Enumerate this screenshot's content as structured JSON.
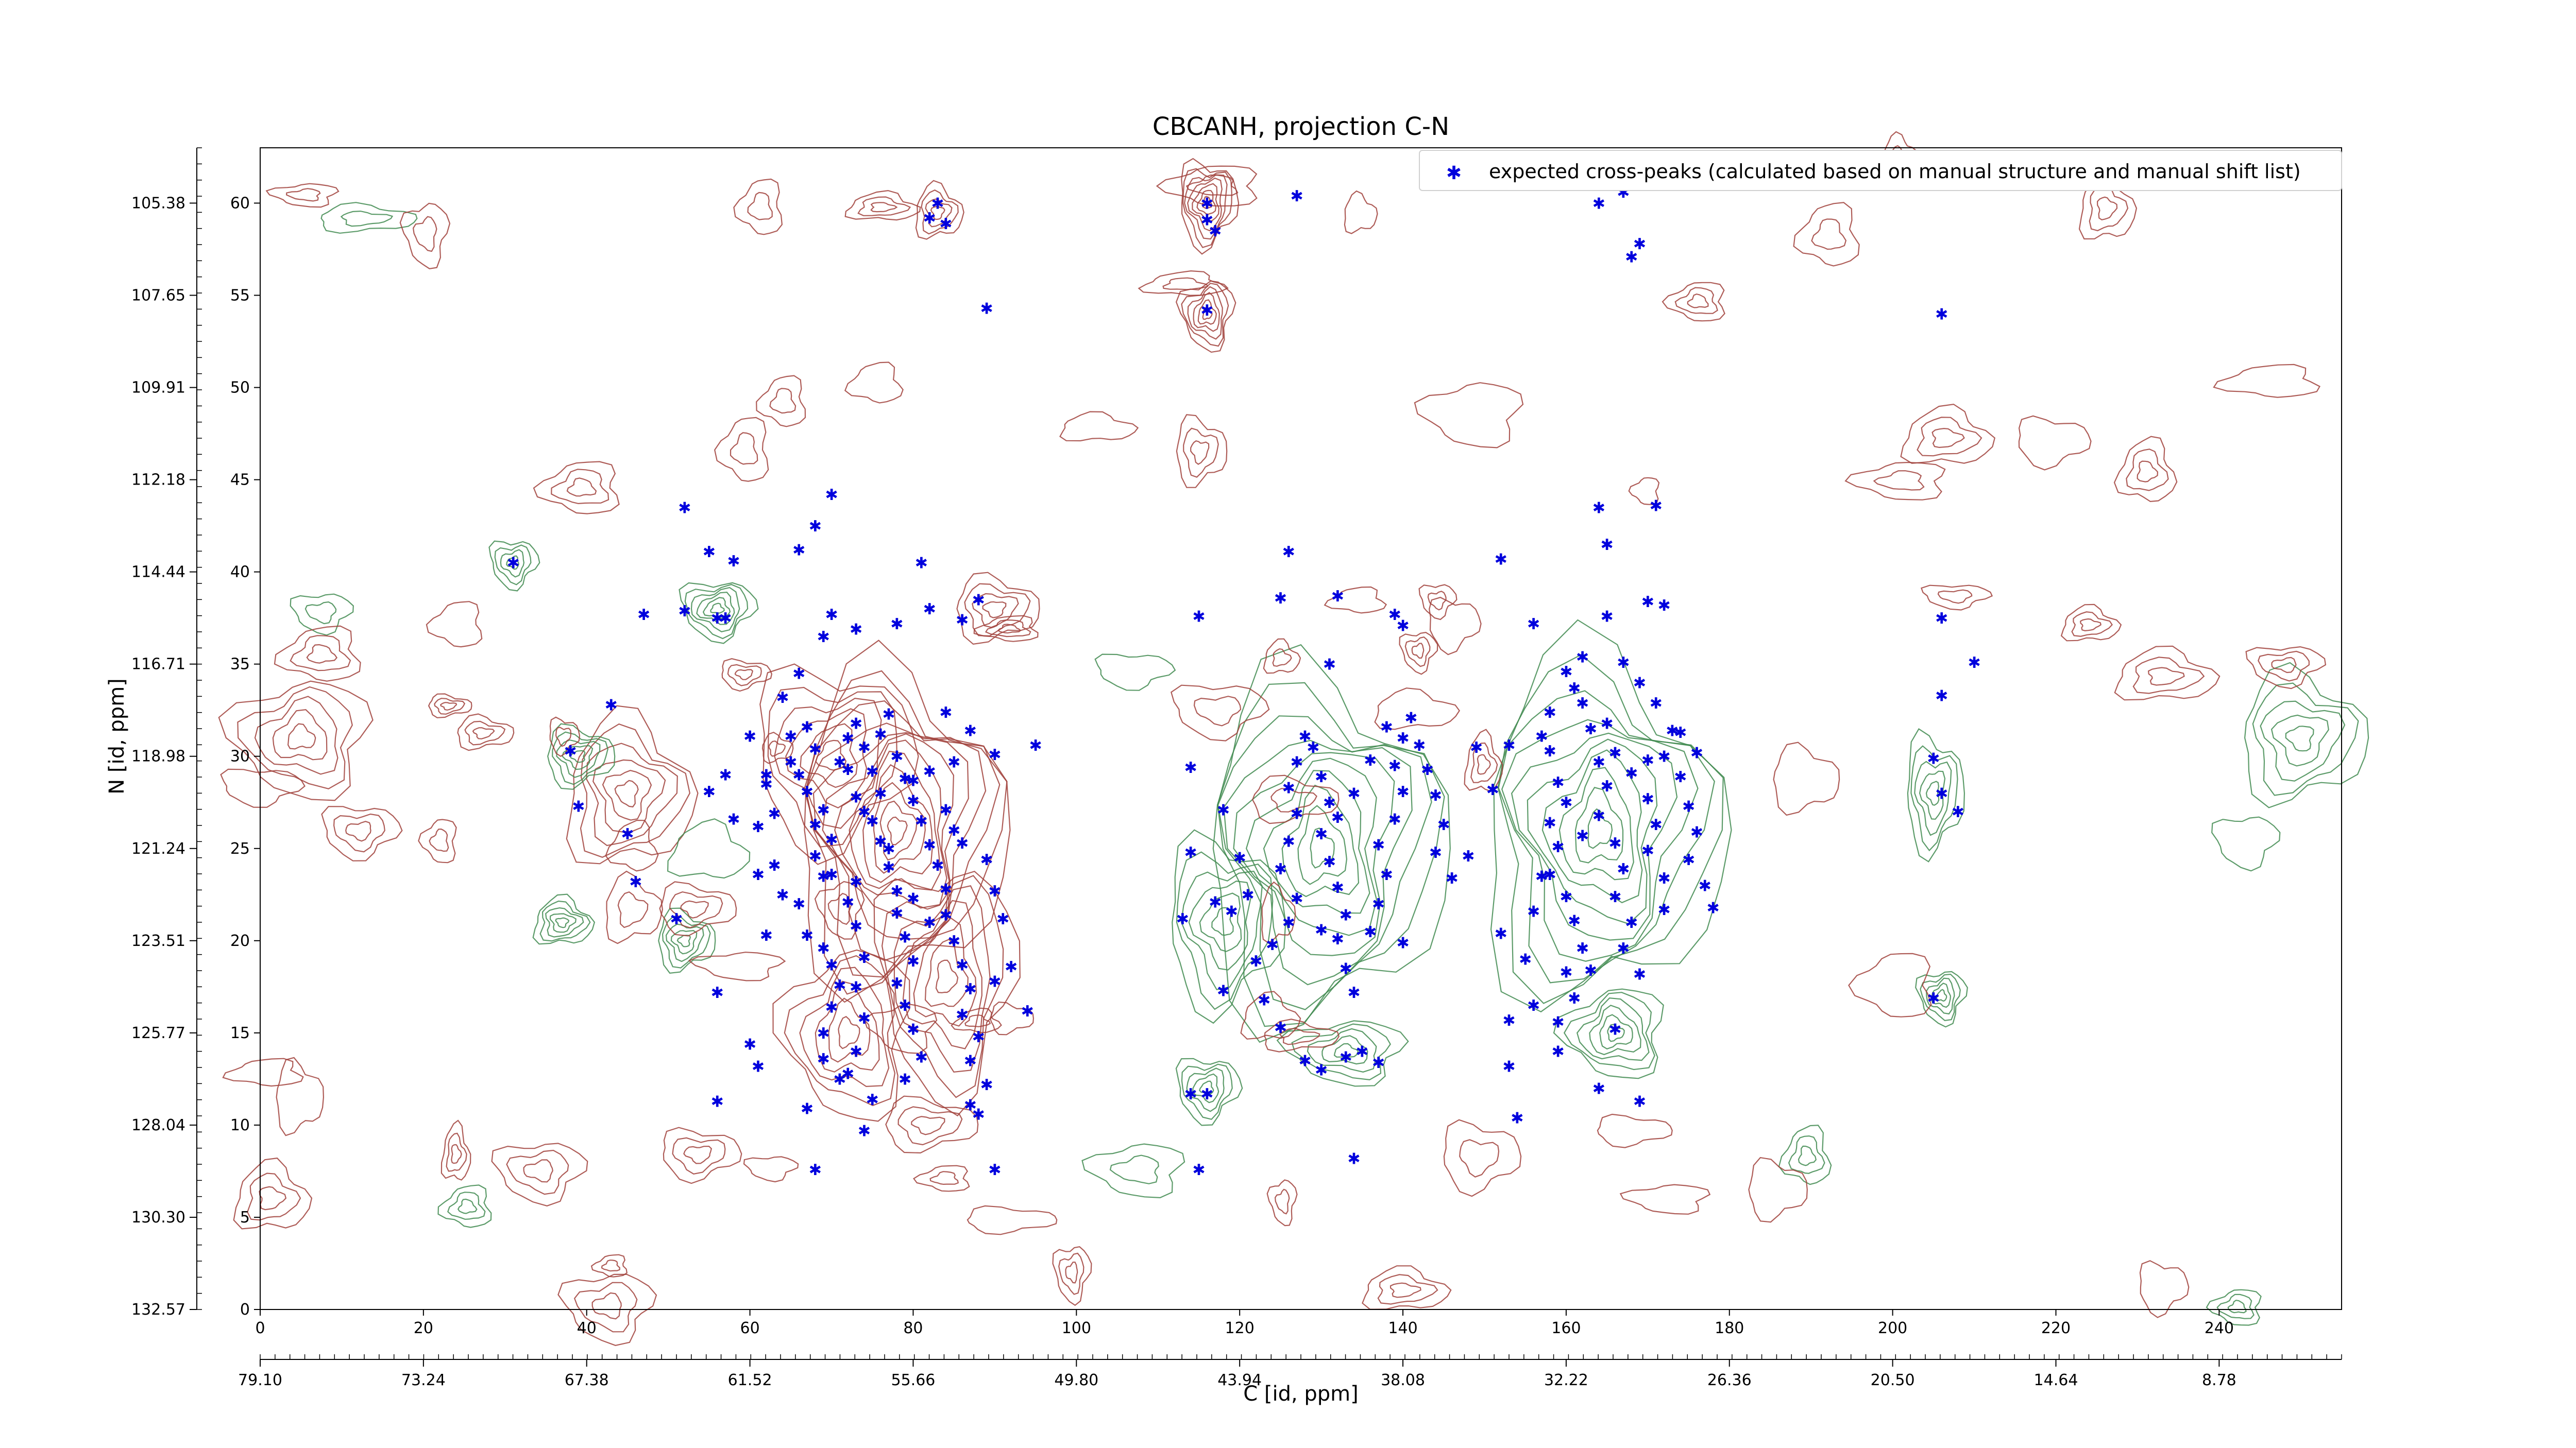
{
  "chart_data": {
    "type": "scatter",
    "title": "CBCANH, projection C-N",
    "xlabel": "C [id, ppm]",
    "ylabel": "N [id, ppm]",
    "xlim": [
      0,
      255
    ],
    "ylim": [
      0,
      63
    ],
    "x_ticks": [
      0,
      20,
      40,
      60,
      80,
      100,
      120,
      140,
      160,
      180,
      200,
      220,
      240
    ],
    "y_ticks": [
      0,
      5,
      10,
      15,
      20,
      25,
      30,
      35,
      40,
      45,
      50,
      55,
      60
    ],
    "x_ppm_ticks": [
      "79.10",
      "73.24",
      "67.38",
      "61.52",
      "55.66",
      "49.80",
      "43.94",
      "38.08",
      "32.22",
      "26.36",
      "20.50",
      "14.64",
      "8.78"
    ],
    "y_ppm_ticks": [
      "132.57",
      "130.30",
      "128.04",
      "125.77",
      "123.51",
      "121.24",
      "118.98",
      "116.71",
      "114.44",
      "112.18",
      "109.91",
      "107.65",
      "105.38"
    ],
    "legend_position": "top-right",
    "colors": {
      "peaks": "#0000dd",
      "positive_contours": "#a0403a",
      "negative_contours": "#3f8a4f"
    },
    "series": [
      {
        "name": "expected cross-peaks (calculated based on manual structure and manual shift list)",
        "points": [
          [
            31,
            40.5
          ],
          [
            38,
            30.3
          ],
          [
            39,
            27.3
          ],
          [
            43,
            32.8
          ],
          [
            45,
            25.8
          ],
          [
            47,
            37.7
          ],
          [
            46,
            23.2
          ],
          [
            51,
            21.2
          ],
          [
            52,
            43.5
          ],
          [
            52,
            37.9
          ],
          [
            55,
            41.1
          ],
          [
            56,
            37.5
          ],
          [
            57,
            37.5
          ],
          [
            56,
            17.2
          ],
          [
            56,
            11.3
          ],
          [
            55,
            28.1
          ],
          [
            58,
            26.6
          ],
          [
            58,
            40.6
          ],
          [
            60,
            31.1
          ],
          [
            57,
            29.0
          ],
          [
            60,
            14.4
          ],
          [
            61,
            13.2
          ],
          [
            62,
            29.0
          ],
          [
            63,
            24.1
          ],
          [
            64,
            22.5
          ],
          [
            61,
            23.6
          ],
          [
            62,
            20.3
          ],
          [
            64,
            33.2
          ],
          [
            65,
            31.1
          ],
          [
            66,
            34.5
          ],
          [
            67,
            31.6
          ],
          [
            65,
            29.7
          ],
          [
            66,
            29.0
          ],
          [
            68,
            30.4
          ],
          [
            67,
            28.1
          ],
          [
            69,
            27.1
          ],
          [
            68,
            26.3
          ],
          [
            70,
            25.5
          ],
          [
            68,
            24.6
          ],
          [
            70,
            23.6
          ],
          [
            66,
            22.0
          ],
          [
            67,
            20.3
          ],
          [
            69,
            19.6
          ],
          [
            70,
            18.7
          ],
          [
            71,
            17.6
          ],
          [
            70,
            16.4
          ],
          [
            69,
            15.0
          ],
          [
            69,
            13.6
          ],
          [
            71,
            12.5
          ],
          [
            67,
            10.9
          ],
          [
            68,
            7.6
          ],
          [
            72,
            22.1
          ],
          [
            73,
            20.8
          ],
          [
            74,
            19.1
          ],
          [
            73,
            17.5
          ],
          [
            74,
            15.8
          ],
          [
            73,
            14.0
          ],
          [
            72,
            12.8
          ],
          [
            75,
            11.4
          ],
          [
            74,
            9.7
          ],
          [
            71,
            29.7
          ],
          [
            72,
            31.0
          ],
          [
            73,
            31.8
          ],
          [
            74,
            30.5
          ],
          [
            75,
            29.2
          ],
          [
            76,
            28.0
          ],
          [
            74,
            27.0
          ],
          [
            76,
            25.4
          ],
          [
            77,
            24.0
          ],
          [
            78,
            22.7
          ],
          [
            78,
            21.5
          ],
          [
            79,
            20.2
          ],
          [
            80,
            18.9
          ],
          [
            78,
            17.7
          ],
          [
            79,
            16.5
          ],
          [
            80,
            15.2
          ],
          [
            81,
            13.7
          ],
          [
            79,
            12.5
          ],
          [
            76,
            31.2
          ],
          [
            77,
            32.3
          ],
          [
            78,
            30.0
          ],
          [
            79,
            28.8
          ],
          [
            80,
            27.6
          ],
          [
            81,
            26.5
          ],
          [
            82,
            25.2
          ],
          [
            83,
            24.1
          ],
          [
            84,
            22.8
          ],
          [
            84,
            21.4
          ],
          [
            85,
            20.0
          ],
          [
            86,
            18.7
          ],
          [
            87,
            17.4
          ],
          [
            86,
            16.0
          ],
          [
            88,
            14.8
          ],
          [
            87,
            13.5
          ],
          [
            89,
            12.2
          ],
          [
            87,
            11.1
          ],
          [
            88,
            10.6
          ],
          [
            90,
            7.6
          ],
          [
            88,
            38.5
          ],
          [
            86,
            37.4
          ],
          [
            82,
            38.0
          ],
          [
            78,
            37.2
          ],
          [
            73,
            36.9
          ],
          [
            70,
            37.7
          ],
          [
            69,
            36.5
          ],
          [
            66,
            41.2
          ],
          [
            70,
            44.2
          ],
          [
            68,
            42.5
          ],
          [
            81,
            40.5
          ],
          [
            83,
            60.0
          ],
          [
            82,
            59.2
          ],
          [
            84,
            58.9
          ],
          [
            89,
            54.3
          ],
          [
            80,
            28.7
          ],
          [
            82,
            29.2
          ],
          [
            84,
            27.1
          ],
          [
            85,
            26.0
          ],
          [
            86,
            25.3
          ],
          [
            89,
            24.4
          ],
          [
            90,
            22.7
          ],
          [
            91,
            21.2
          ],
          [
            92,
            18.6
          ],
          [
            90,
            17.8
          ],
          [
            94,
            16.2
          ],
          [
            90,
            30.1
          ],
          [
            87,
            31.4
          ],
          [
            85,
            29.7
          ],
          [
            95,
            30.6
          ],
          [
            84,
            32.4
          ],
          [
            61,
            26.2
          ],
          [
            63,
            26.9
          ],
          [
            62,
            28.5
          ],
          [
            72,
            29.3
          ],
          [
            73,
            27.8
          ],
          [
            75,
            26.5
          ],
          [
            77,
            25.0
          ],
          [
            69,
            23.5
          ],
          [
            73,
            23.2
          ],
          [
            80,
            22.3
          ],
          [
            82,
            21.0
          ],
          [
            116,
            60.0
          ],
          [
            116,
            59.1
          ],
          [
            117,
            58.5
          ],
          [
            116,
            54.2
          ],
          [
            114,
            29.4
          ],
          [
            115,
            37.6
          ],
          [
            118,
            27.1
          ],
          [
            117,
            22.1
          ],
          [
            114,
            24.8
          ],
          [
            113,
            21.2
          ],
          [
            114,
            11.7
          ],
          [
            116,
            11.7
          ],
          [
            115,
            7.6
          ],
          [
            120,
            24.5
          ],
          [
            121,
            22.5
          ],
          [
            119,
            21.6
          ],
          [
            118,
            17.3
          ],
          [
            122,
            18.9
          ],
          [
            123,
            16.8
          ],
          [
            125,
            15.3
          ],
          [
            124,
            19.8
          ],
          [
            126,
            21.0
          ],
          [
            127,
            22.3
          ],
          [
            125,
            23.9
          ],
          [
            126,
            25.4
          ],
          [
            127,
            26.9
          ],
          [
            126,
            28.3
          ],
          [
            127,
            29.7
          ],
          [
            128,
            31.1
          ],
          [
            129,
            30.5
          ],
          [
            130,
            28.9
          ],
          [
            131,
            27.5
          ],
          [
            130,
            25.8
          ],
          [
            131,
            24.3
          ],
          [
            132,
            22.9
          ],
          [
            133,
            21.4
          ],
          [
            132,
            20.1
          ],
          [
            133,
            18.5
          ],
          [
            134,
            17.2
          ],
          [
            133,
            13.7
          ],
          [
            130,
            13.0
          ],
          [
            128,
            13.5
          ],
          [
            134,
            8.2
          ],
          [
            135,
            14.0
          ],
          [
            137,
            13.4
          ],
          [
            136,
            20.5
          ],
          [
            137,
            22.0
          ],
          [
            138,
            23.6
          ],
          [
            137,
            25.2
          ],
          [
            139,
            26.6
          ],
          [
            140,
            28.1
          ],
          [
            139,
            29.5
          ],
          [
            140,
            31.0
          ],
          [
            141,
            32.1
          ],
          [
            142,
            30.6
          ],
          [
            143,
            29.3
          ],
          [
            144,
            27.9
          ],
          [
            145,
            26.3
          ],
          [
            144,
            24.8
          ],
          [
            146,
            23.4
          ],
          [
            125,
            38.6
          ],
          [
            126,
            41.1
          ],
          [
            131,
            35.0
          ],
          [
            132,
            38.7
          ],
          [
            139,
            37.7
          ],
          [
            140,
            37.1
          ],
          [
            138,
            31.6
          ],
          [
            136,
            29.8
          ],
          [
            134,
            28.0
          ],
          [
            132,
            26.7
          ],
          [
            130,
            20.6
          ],
          [
            140,
            19.9
          ],
          [
            148,
            24.6
          ],
          [
            149,
            30.5
          ],
          [
            151,
            28.2
          ],
          [
            153,
            30.6
          ],
          [
            152,
            40.7
          ],
          [
            156,
            37.2
          ],
          [
            158,
            30.3
          ],
          [
            159,
            28.6
          ],
          [
            160,
            27.5
          ],
          [
            158,
            26.4
          ],
          [
            159,
            25.1
          ],
          [
            157,
            23.5
          ],
          [
            160,
            22.4
          ],
          [
            161,
            21.1
          ],
          [
            162,
            19.6
          ],
          [
            160,
            18.3
          ],
          [
            161,
            16.9
          ],
          [
            159,
            15.6
          ],
          [
            164,
            29.7
          ],
          [
            165,
            28.4
          ],
          [
            164,
            26.8
          ],
          [
            166,
            25.3
          ],
          [
            167,
            23.9
          ],
          [
            166,
            22.4
          ],
          [
            168,
            21.0
          ],
          [
            167,
            19.6
          ],
          [
            169,
            18.2
          ],
          [
            170,
            29.8
          ],
          [
            170,
            27.7
          ],
          [
            171,
            26.3
          ],
          [
            170,
            24.9
          ],
          [
            172,
            23.4
          ],
          [
            172,
            21.7
          ],
          [
            174,
            28.9
          ],
          [
            175,
            27.3
          ],
          [
            176,
            25.9
          ],
          [
            175,
            24.4
          ],
          [
            177,
            23.0
          ],
          [
            178,
            21.8
          ],
          [
            173,
            31.4
          ],
          [
            171,
            32.9
          ],
          [
            169,
            34.0
          ],
          [
            167,
            35.1
          ],
          [
            165,
            37.6
          ],
          [
            170,
            38.4
          ],
          [
            165,
            41.5
          ],
          [
            164,
            43.5
          ],
          [
            171,
            43.6
          ],
          [
            166,
            15.2
          ],
          [
            164,
            12.0
          ],
          [
            163,
            18.4
          ],
          [
            159,
            14.0
          ],
          [
            156,
            16.5
          ],
          [
            155,
            19.0
          ],
          [
            156,
            21.6
          ],
          [
            158,
            23.6
          ],
          [
            162,
            25.7
          ],
          [
            165,
            31.8
          ],
          [
            166,
            30.2
          ],
          [
            168,
            29.1
          ],
          [
            172,
            30.0
          ],
          [
            174,
            31.3
          ],
          [
            176,
            30.2
          ],
          [
            163,
            31.5
          ],
          [
            162,
            32.9
          ],
          [
            161,
            33.7
          ],
          [
            160,
            34.6
          ],
          [
            162,
            35.4
          ],
          [
            158,
            32.4
          ],
          [
            157,
            31.1
          ],
          [
            169,
            11.3
          ],
          [
            154,
            10.4
          ],
          [
            153,
            13.2
          ],
          [
            153,
            15.7
          ],
          [
            152,
            20.4
          ],
          [
            169,
            57.8
          ],
          [
            168,
            57.1
          ],
          [
            164,
            60.0
          ],
          [
            167,
            60.6
          ],
          [
            172,
            38.2
          ],
          [
            206,
            37.5
          ],
          [
            206,
            33.3
          ],
          [
            205,
            29.9
          ],
          [
            206,
            28.0
          ],
          [
            208,
            27.0
          ],
          [
            210,
            35.1
          ],
          [
            205,
            16.9
          ],
          [
            206,
            54.0
          ],
          [
            127,
            60.4
          ]
        ]
      }
    ]
  }
}
